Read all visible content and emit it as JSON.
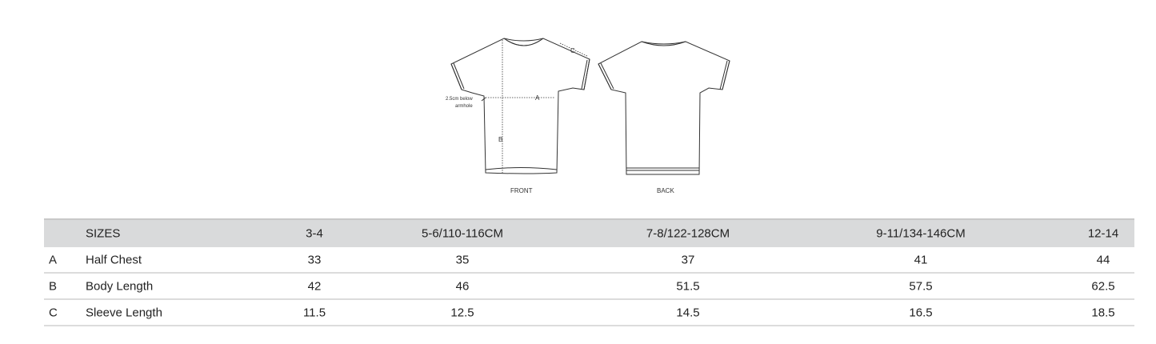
{
  "diagram": {
    "front_label": "FRONT",
    "back_label": "BACK",
    "annotation": "2.5cm below armhole",
    "annotation_line1": "2.5cm below",
    "annotation_line2": "armhole",
    "markers": {
      "a": "A",
      "b": "B",
      "c": "C"
    }
  },
  "table": {
    "header": {
      "label": "SIZES",
      "sizes": [
        "3-4",
        "5-6/110-116CM",
        "7-8/122-128CM",
        "9-11/134-146CM",
        "12-14"
      ]
    },
    "rows": [
      {
        "key": "A",
        "label": "Half Chest",
        "values": [
          "33",
          "35",
          "37",
          "41",
          "44"
        ]
      },
      {
        "key": "B",
        "label": "Body Length",
        "values": [
          "42",
          "46",
          "51.5",
          "57.5",
          "62.5"
        ]
      },
      {
        "key": "C",
        "label": "Sleeve Length",
        "values": [
          "11.5",
          "12.5",
          "14.5",
          "16.5",
          "18.5"
        ]
      }
    ]
  }
}
